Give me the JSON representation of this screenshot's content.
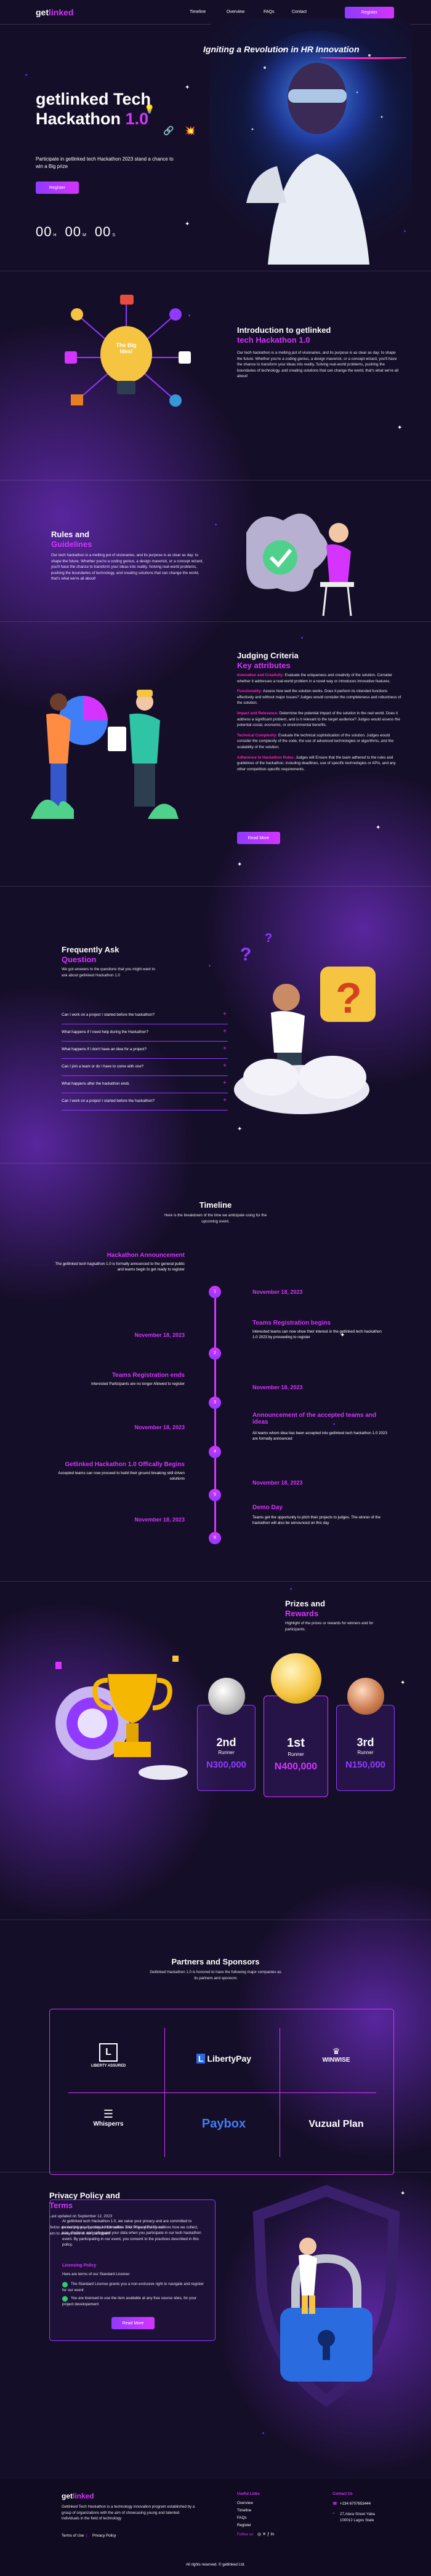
{
  "nav": {
    "logo_a": "get",
    "logo_b": "linked",
    "items": [
      "Timeline",
      "Overview",
      "FAQs",
      "Contact"
    ],
    "register": "Register"
  },
  "hero": {
    "tagline": "Igniting a Revolution in HR Innovation",
    "title_line1": "getlinked Tech",
    "title_line2": "Hackathon",
    "title_version": "1.0",
    "subtitle": "Participate in getlinked tech Hackathon 2023 stand a chance to win a Big prize",
    "register": "Register",
    "countdown": [
      {
        "num": "00",
        "unit": "H"
      },
      {
        "num": "00",
        "unit": "M"
      },
      {
        "num": "00",
        "unit": "S"
      }
    ]
  },
  "intro": {
    "bulb_text": "The Big Idea!",
    "title_a": "Introduction to getlinked",
    "title_b": "tech Hackathon 1.0",
    "body": "Our tech hackathon is a melting pot of visionaries, and its purpose is as clear as day: to shape the future. Whether you're a coding genius, a design maverick, or a concept wizard, you'll have the chance to transform your ideas into reality. Solving real-world problems, pushing the boundaries of technology, and creating solutions that can change the world, that's what we're all about!"
  },
  "rules": {
    "title_a": "Rules and",
    "title_b": "Guidelines",
    "body": "Our tech hackathon is a melting pot of visionaries, and its purpose is as clear as day: to shape the future. Whether you're a coding genius, a design maverick, or a concept wizard, you'll have the chance to transform your ideas into reality. Solving real-world problems, pushing the boundaries of technology, and creating solutions that can change the world, that's what we're all about!"
  },
  "criteria": {
    "title_a": "Judging Criteria",
    "title_b": "Key attributes",
    "items": [
      {
        "label": "Innovation and Creativity:",
        "text": "Evaluate the uniqueness and creativity of the solution. Consider whether it addresses a real-world problem in a novel way or introduces innovative features."
      },
      {
        "label": "Functionality:",
        "text": "Assess how well the solution works. Does it perform its intended functions effectively and without major issues? Judges would consider the completeness and robustness of the solution."
      },
      {
        "label": "Impact and Relevance:",
        "text": "Determine the potential impact of the solution in the real world. Does it address a significant problem, and is it relevant to the target audience? Judges would assess the potential social, economic, or environmental benefits."
      },
      {
        "label": "Technical Complexity:",
        "text": "Evaluate the technical sophistication of the solution. Judges would consider the complexity of the code, the use of advanced technologies or algorithms, and the scalability of the solution."
      },
      {
        "label": "Adherence to Hackathon Rules:",
        "text": "Judges will Ensure that the team adhered to the rules and guidelines of the hackathon, including deadlines, use of specific technologies or APIs, and any other competition-specific requirements."
      }
    ],
    "button": "Read More"
  },
  "faq": {
    "title_a": "Frequently Ask",
    "title_b": "Question",
    "body": "We got answers to the questions that you might want to ask about getlinked Hackathon 1.0",
    "items": [
      "Can I work on a project I started before the hackathon?",
      "What happens if I need help during the Hackathon?",
      "What happens if I don't have an idea for a project?",
      "Can I join a team or do I have to come with one?",
      "What happens after the hackathon ends",
      "Can I work on a project I started before the hackathon?"
    ]
  },
  "timeline": {
    "title": "Timeline",
    "subtitle": "Here is the breakdown of the time we anticipate using for the upcoming event.",
    "events": [
      {
        "n": "1",
        "title": "Hackathon Announcement",
        "text": "The getlinked tech hackathon 1.0 is formally announced to the general public and teams begin to get ready to register",
        "date": "November 18, 2023"
      },
      {
        "n": "2",
        "title": "Teams Registration begins",
        "text": "Interested teams can now show their interest in the getlinked tech hackathon 1.0 2023 by proceeding to register",
        "date": "November 18, 2023"
      },
      {
        "n": "3",
        "title": "Teams Registration ends",
        "text": "Interested Participants are no longer Allowed to register",
        "date": "November 18, 2023"
      },
      {
        "n": "4",
        "title": "Announcement of the accepted teams and ideas",
        "text": "All teams whom idea has been accepted into getlinked tech hackathon 1.0 2023 are formally announced",
        "date": "November 18, 2023"
      },
      {
        "n": "5",
        "title": "Getlinked Hackathon 1.0 Offically Begins",
        "text": "Accepted teams can now proceed to build their ground breaking skill driven solutions",
        "date": "November 18, 2023"
      },
      {
        "n": "6",
        "title": "Demo Day",
        "text": "Teams get the opportunity to pitch their projects to judges. The winner of the hackathon will also be announced on this day",
        "date": "November 18, 2023"
      }
    ]
  },
  "prizes": {
    "title_a": "Prizes and",
    "title_b": "Rewards",
    "body": "Highlight of the prizes or rewards for winners and for participants.",
    "items": [
      {
        "rank": "2nd",
        "label": "Runner",
        "amount": "N300,000",
        "color": "#c0c0c0"
      },
      {
        "rank": "1st",
        "label": "Runner",
        "amount": "N400,000",
        "color": "#f5c542"
      },
      {
        "rank": "3rd",
        "label": "Runner",
        "amount": "N150,000",
        "color": "#cd7f52"
      }
    ]
  },
  "partners": {
    "title": "Partners and Sponsors",
    "body": "Getlinked Hackathon 1.0 is honored to have the following major companies as its partners and sponsors",
    "logos": [
      "LIBERTY ASSURED",
      "LibertyPay",
      "WINWISE",
      "Whisperrs",
      "Paybox",
      "Vuzual Plan"
    ]
  },
  "privacy": {
    "title_a": "Privacy Policy and",
    "title_b": "Terms",
    "updated": "Last updated on September 12, 2023",
    "intro": "Below are our privacy & policy, which outline a lot of goodies. It's our aim to always take of our participant",
    "box_text": "At getlinked tech Hackathon 1.0, we value your privacy and are committed to protecting your personal information. This Privacy Policy outlines how we collect, use, disclose, and safeguard your data when you participate in our tech hackathon event. By participating in our event, you consent to the practices described in this policy.",
    "license_title": "Licensing Policy",
    "license_sub": "Here are terms of our Standard License:",
    "checks": [
      "The Standard License grants you a non-exclusive right to navigate and register for our event",
      "You are licensed to use the item available at any free source sites, for your project developement"
    ],
    "button": "Read More"
  },
  "footer": {
    "body": "Getlinked Tech Hackathon is a technology innovation program established by a group of organizations with the aim of showcasing young and talented individuals in the field of technology",
    "terms": "Terms of Use",
    "privacy": "Privacy Policy",
    "useful_title": "Useful Links",
    "links": [
      "Overview",
      "Timeline",
      "FAQs",
      "Register"
    ],
    "follow": "Follow us",
    "contact_title": "Contact Us",
    "phone": "+234 6707653444",
    "address": "27,Alara Street Yaba 100012 Lagos State",
    "copyright": "All rights reserved. © getlinked Ltd."
  }
}
